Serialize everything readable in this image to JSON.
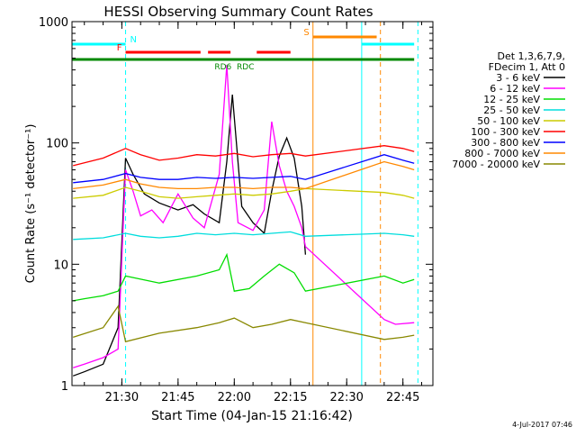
{
  "chart_data": {
    "type": "line",
    "title": "HESSI Observing Summary Count Rates",
    "xlabel": "Start Time (04-Jan-15 21:16:42)",
    "ylabel": "Count Rate (s⁻¹ detector⁻¹)",
    "yscale": "log",
    "ylim": [
      1,
      1000
    ],
    "xlim": [
      "21:16:42",
      "22:53:00"
    ],
    "x_ticks": [
      "21:30",
      "21:45",
      "22:00",
      "22:15",
      "22:30",
      "22:45"
    ],
    "y_ticks": [
      "1",
      "10",
      "100",
      "1000"
    ],
    "grid": false,
    "legend_header": [
      "Det 1,3,6,7,9,",
      "FDecim 1, Att 0"
    ],
    "series": [
      {
        "name": "3 - 6 keV",
        "color": "#000000",
        "x": [
          "21:17",
          "21:20",
          "21:25",
          "21:29",
          "21:31",
          "21:33",
          "21:36",
          "21:40",
          "21:45",
          "21:49",
          "21:52",
          "21:56",
          "21:58",
          "21:59:30",
          "22:02",
          "22:05",
          "22:08",
          "22:10",
          "22:12",
          "22:14",
          "22:16",
          "22:18",
          "22:19"
        ],
        "y": [
          1.2,
          1.3,
          1.5,
          3,
          75,
          55,
          38,
          32,
          28,
          31,
          26,
          22,
          70,
          250,
          30,
          22,
          18,
          40,
          78,
          110,
          75,
          30,
          12
        ]
      },
      {
        "name": "6 - 12 keV",
        "color": "#ff00ff",
        "x": [
          "21:17",
          "21:20",
          "21:25",
          "21:29",
          "21:31",
          "21:33",
          "21:35",
          "21:38",
          "21:41",
          "21:45",
          "21:49",
          "21:52",
          "21:56",
          "21:58",
          "21:59:30",
          "22:01",
          "22:05",
          "22:08",
          "22:10",
          "22:12",
          "22:14",
          "22:16",
          "22:18",
          "22:19",
          "22:40",
          "22:43",
          "22:48"
        ],
        "y": [
          1.4,
          1.5,
          1.7,
          2,
          60,
          40,
          25,
          28,
          22,
          38,
          24,
          20,
          55,
          440,
          70,
          22,
          19,
          28,
          150,
          65,
          40,
          30,
          20,
          14,
          3.5,
          3.2,
          3.3
        ]
      },
      {
        "name": "12 - 25 keV",
        "color": "#00dd00",
        "x": [
          "21:17",
          "21:20",
          "21:25",
          "21:29",
          "21:31",
          "21:40",
          "21:50",
          "21:56",
          "21:58",
          "22:00",
          "22:04",
          "22:08",
          "22:12",
          "22:16",
          "22:19",
          "22:40",
          "22:45",
          "22:48"
        ],
        "y": [
          5,
          5.2,
          5.5,
          6,
          8,
          7,
          8,
          9,
          12,
          6,
          6.3,
          8,
          10,
          8.5,
          6,
          8,
          7,
          7.5
        ]
      },
      {
        "name": "25 - 50 keV",
        "color": "#00dddd",
        "x": [
          "21:17",
          "21:25",
          "21:31",
          "21:35",
          "21:40",
          "21:45",
          "21:50",
          "21:55",
          "22:00",
          "22:05",
          "22:10",
          "22:15",
          "22:19",
          "22:40",
          "22:45",
          "22:48"
        ],
        "y": [
          16,
          16.5,
          18,
          17,
          16.5,
          17,
          18,
          17.5,
          18,
          17.5,
          18,
          18.5,
          17,
          18,
          17.5,
          17
        ]
      },
      {
        "name": "50 - 100 keV",
        "color": "#cccc00",
        "x": [
          "21:17",
          "21:25",
          "21:31",
          "21:35",
          "21:40",
          "21:45",
          "21:50",
          "21:55",
          "22:00",
          "22:05",
          "22:10",
          "22:15",
          "22:19",
          "22:40",
          "22:45",
          "22:48"
        ],
        "y": [
          35,
          37,
          43,
          40,
          36,
          35,
          36,
          37,
          38,
          37,
          38,
          40,
          42,
          39,
          37,
          35
        ]
      },
      {
        "name": "100 - 300 keV",
        "color": "#ff0000",
        "x": [
          "21:17",
          "21:25",
          "21:31",
          "21:35",
          "21:40",
          "21:45",
          "21:50",
          "21:55",
          "22:00",
          "22:05",
          "22:10",
          "22:15",
          "22:19",
          "22:40",
          "22:45",
          "22:48"
        ],
        "y": [
          65,
          75,
          90,
          80,
          72,
          75,
          80,
          78,
          82,
          77,
          80,
          82,
          78,
          95,
          90,
          85
        ]
      },
      {
        "name": "300 - 800 keV",
        "color": "#0000ff",
        "x": [
          "21:17",
          "21:25",
          "21:31",
          "21:35",
          "21:40",
          "21:45",
          "21:50",
          "21:55",
          "22:00",
          "22:05",
          "22:10",
          "22:15",
          "22:19",
          "22:40",
          "22:45",
          "22:48"
        ],
        "y": [
          47,
          50,
          56,
          52,
          50,
          50,
          52,
          51,
          52,
          51,
          52,
          53,
          50,
          80,
          72,
          68
        ]
      },
      {
        "name": "800 - 7000 keV",
        "color": "#ff8800",
        "x": [
          "21:17",
          "21:25",
          "21:31",
          "21:35",
          "21:40",
          "21:45",
          "21:50",
          "21:55",
          "22:00",
          "22:05",
          "22:10",
          "22:15",
          "22:19",
          "22:40",
          "22:45",
          "22:48"
        ],
        "y": [
          42,
          45,
          50,
          46,
          43,
          42,
          42,
          43,
          43,
          42,
          43,
          43,
          42,
          70,
          64,
          60
        ]
      },
      {
        "name": "7000 - 20000 keV",
        "color": "#888800",
        "x": [
          "21:17",
          "21:25",
          "21:29",
          "21:31",
          "21:40",
          "21:50",
          "21:56",
          "22:00",
          "22:05",
          "22:10",
          "22:15",
          "22:19",
          "22:40",
          "22:45",
          "22:48"
        ],
        "y": [
          2.5,
          3,
          4.5,
          2.3,
          2.7,
          3,
          3.3,
          3.6,
          3,
          3.2,
          3.5,
          3.3,
          2.4,
          2.5,
          2.6
        ]
      }
    ],
    "mode_bars": [
      {
        "label": "N",
        "color": "#00ffff",
        "segments": [
          [
            "21:16:42",
            "21:31"
          ],
          [
            "22:34",
            "22:48"
          ]
        ]
      },
      {
        "label": "F",
        "color": "#ff0000",
        "segments": [
          [
            "21:31",
            "21:51"
          ],
          [
            "21:53",
            "21:59"
          ],
          [
            "22:06",
            "22:15"
          ]
        ]
      },
      {
        "label": "S",
        "color": "#ff8800",
        "segments": [
          [
            "22:21",
            "22:38"
          ]
        ]
      },
      {
        "label": "",
        "color": "#008800",
        "segments": [
          [
            "21:16:42",
            "22:48"
          ]
        ]
      }
    ],
    "markers": [
      {
        "label": "RD6",
        "color": "#008800",
        "x": "21:57"
      },
      {
        "label": "RDC",
        "color": "#008800",
        "x": "22:03"
      }
    ],
    "vlines": [
      {
        "x": "21:31",
        "color": "#00ffff",
        "style": "dashed"
      },
      {
        "x": "22:21",
        "color": "#ff8800",
        "style": "solid"
      },
      {
        "x": "22:34",
        "color": "#00ffff",
        "style": "solid"
      },
      {
        "x": "22:39",
        "color": "#ff8800",
        "style": "dashed"
      },
      {
        "x": "22:49",
        "color": "#00ffff",
        "style": "dashed"
      }
    ],
    "footer_date": "4-Jul-2017 07:46"
  }
}
